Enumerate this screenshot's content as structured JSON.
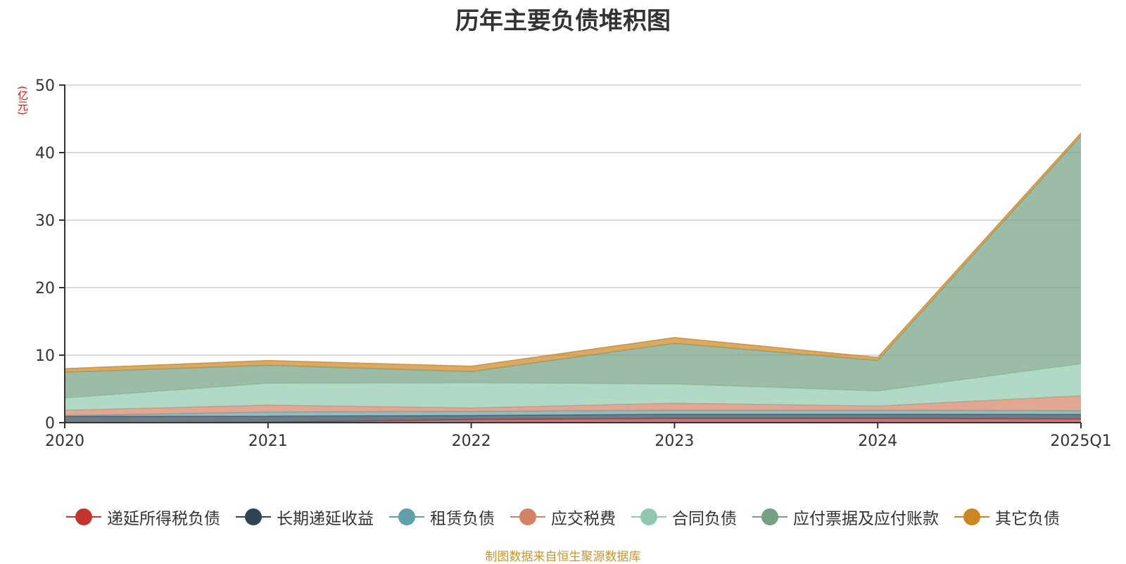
{
  "title": "历年主要负债堆积图",
  "unit_label": "(亿元)",
  "footer": "制图数据来自恒生聚源数据库",
  "legend": [
    {
      "label": "递延所得税负债",
      "color": "#c23531",
      "icon": "circle-line-marker"
    },
    {
      "label": "长期递延收益",
      "color": "#2f4554",
      "icon": "circle-line-marker"
    },
    {
      "label": "租赁负债",
      "color": "#61a0a8",
      "icon": "circle-line-marker"
    },
    {
      "label": "应交税费",
      "color": "#d48265",
      "icon": "circle-line-marker"
    },
    {
      "label": "合同负债",
      "color": "#91c7ae",
      "icon": "circle-line-marker"
    },
    {
      "label": "应付票据及应付账款",
      "color": "#749f83",
      "icon": "circle-line-marker"
    },
    {
      "label": "其它负债",
      "color": "#ca8622",
      "icon": "circle-line-marker"
    }
  ],
  "chart_data": {
    "type": "area",
    "stacked": true,
    "title": "历年主要负债堆积图",
    "xlabel": "",
    "ylabel": "(亿元)",
    "ylim": [
      0,
      50
    ],
    "yticks": [
      0,
      10,
      20,
      30,
      40,
      50
    ],
    "grid": true,
    "legend_position": "bottom",
    "categories": [
      "2020",
      "2021",
      "2022",
      "2023",
      "2024",
      "2025Q1"
    ],
    "series": [
      {
        "name": "递延所得税负债",
        "color": "#c23531",
        "values": [
          0.0,
          0.05,
          0.45,
          0.62,
          0.62,
          0.55
        ]
      },
      {
        "name": "长期递延收益",
        "color": "#2f4554",
        "values": [
          0.95,
          0.92,
          0.62,
          0.63,
          0.63,
          0.67
        ]
      },
      {
        "name": "租赁负债",
        "color": "#61a0a8",
        "values": [
          0.1,
          0.59,
          0.6,
          0.59,
          0.59,
          0.55
        ]
      },
      {
        "name": "应交税费",
        "color": "#d48265",
        "values": [
          0.79,
          1.04,
          0.52,
          1.04,
          0.63,
          2.22
        ]
      },
      {
        "name": "合同负债",
        "color": "#91c7ae",
        "values": [
          1.81,
          3.23,
          3.71,
          2.85,
          2.22,
          4.73
        ]
      },
      {
        "name": "应付票据及应付账款",
        "color": "#749f83",
        "values": [
          3.82,
          2.67,
          1.67,
          6.01,
          4.51,
          33.78
        ]
      },
      {
        "name": "其它负债",
        "color": "#ca8622",
        "values": [
          0.53,
          0.7,
          0.79,
          0.86,
          0.46,
          0.4
        ]
      }
    ]
  }
}
